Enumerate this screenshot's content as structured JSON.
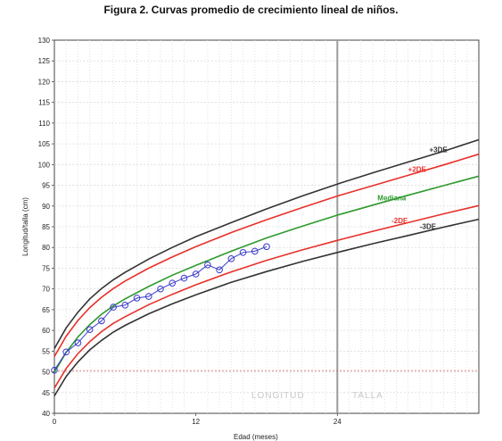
{
  "figure_caption": "Figura 2. Curvas promedio de  crecimiento lineal de niños.",
  "chart_data": {
    "type": "line",
    "title": "",
    "xlabel": "Edad (meses)",
    "ylabel": "Longitud/talla (cm)",
    "xlim": [
      0,
      36
    ],
    "ylim": [
      40,
      130
    ],
    "x_ticks": [
      0,
      12,
      24
    ],
    "y_ticks": [
      40,
      45,
      50,
      55,
      60,
      65,
      70,
      75,
      80,
      85,
      90,
      95,
      100,
      105,
      110,
      115,
      120,
      125,
      130
    ],
    "grid": true,
    "reference_lines": [
      {
        "axis": "x",
        "value": 24,
        "color": "#9a9a9a"
      },
      {
        "axis": "y",
        "value": 50.3,
        "color": "#e06060"
      }
    ],
    "regions": [
      "LONGITUD",
      "TALLA"
    ],
    "curve_x": [
      0,
      1,
      2,
      3,
      4,
      5,
      6,
      8,
      10,
      12,
      15,
      18,
      21,
      24,
      27,
      30,
      33,
      36
    ],
    "series": [
      {
        "name": "+3DE",
        "color": "#333333",
        "values": [
          55.6,
          60.6,
          64.4,
          67.6,
          70.1,
          72.2,
          74.0,
          77.2,
          80.0,
          82.6,
          86.0,
          89.3,
          92.4,
          95.3,
          98.0,
          100.6,
          103.2,
          106.0
        ]
      },
      {
        "name": "+2DE",
        "color": "#e8302a",
        "values": [
          53.7,
          58.6,
          62.4,
          65.5,
          68.0,
          70.1,
          71.9,
          75.0,
          77.7,
          80.2,
          83.6,
          86.7,
          89.6,
          92.4,
          94.9,
          97.4,
          99.9,
          102.5
        ]
      },
      {
        "name": "Mediana",
        "color": "#2e9a2e",
        "values": [
          49.9,
          54.7,
          58.4,
          61.4,
          63.9,
          65.9,
          67.6,
          70.6,
          73.3,
          75.7,
          79.1,
          82.3,
          85.1,
          87.8,
          90.2,
          92.6,
          94.9,
          97.2
        ]
      },
      {
        "name": "-2DE",
        "color": "#e8302a",
        "values": [
          46.1,
          50.8,
          54.4,
          57.3,
          59.7,
          61.7,
          63.3,
          66.2,
          68.7,
          71.0,
          74.1,
          76.9,
          79.4,
          81.7,
          83.9,
          86.0,
          88.1,
          90.1
        ]
      },
      {
        "name": "-3DE",
        "color": "#333333",
        "values": [
          44.2,
          48.9,
          52.4,
          55.3,
          57.6,
          59.6,
          61.2,
          64.0,
          66.4,
          68.6,
          71.6,
          74.2,
          76.6,
          78.8,
          80.9,
          82.9,
          84.9,
          86.8
        ]
      }
    ],
    "patient": {
      "color": "#3a3acc",
      "x": [
        0,
        1,
        2,
        3,
        4,
        5,
        6,
        7,
        8,
        9,
        10,
        11,
        12,
        13,
        14,
        15,
        16,
        17,
        18
      ],
      "y": [
        50.4,
        54.8,
        57.0,
        60.2,
        62.3,
        65.6,
        66.1,
        67.8,
        68.2,
        70.0,
        71.4,
        72.6,
        73.6,
        75.8,
        74.6,
        77.3,
        78.8,
        79.1,
        80.2
      ]
    },
    "series_labels": [
      "+3DE",
      "+2DE",
      "Mediana",
      "-2DE",
      "-3DE"
    ]
  }
}
